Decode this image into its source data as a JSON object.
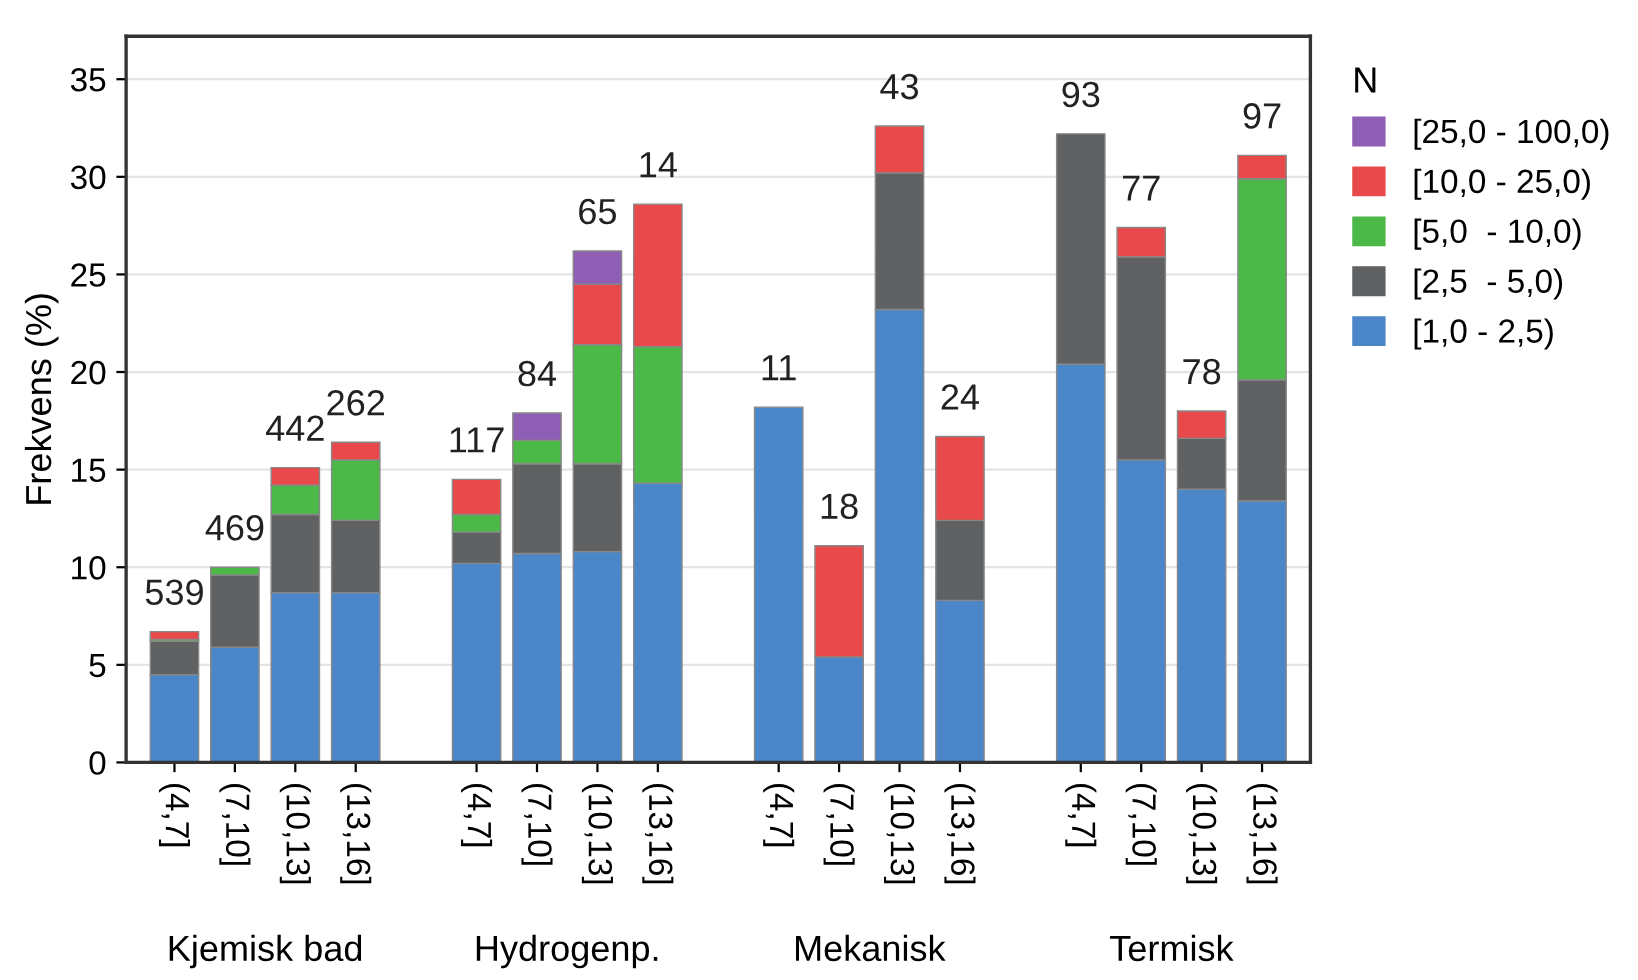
{
  "chart_data": {
    "type": "bar",
    "stacked": true,
    "ylabel": "Frekvens (%)",
    "legend_title": "N",
    "legend": "right",
    "grid": "y",
    "categories": [
      "(4,7]",
      "(7,10]",
      "(10,13]",
      "(13,16]",
      null,
      "(4,7]",
      "(7,10]",
      "(10,13]",
      "(13,16]",
      null,
      "(4,7]",
      "(7,10]",
      "(10,13]",
      "(13,16]",
      null,
      "(4,7]",
      "(7,10]",
      "(10,13]",
      "(13,16]"
    ],
    "series": [
      {
        "name": "[1,0 - 2,5)",
        "color": "#4a86c8",
        "values": [
          4.5,
          5.9,
          8.7,
          8.7,
          null,
          10.2,
          10.7,
          10.8,
          14.3,
          null,
          18.2,
          5.4,
          23.2,
          8.3,
          null,
          20.4,
          15.5,
          14.0,
          13.4
        ]
      },
      {
        "name": "[2,5  - 5,0)",
        "color": "#5f6163",
        "values": [
          1.7,
          3.7,
          4.0,
          3.7,
          null,
          1.6,
          4.6,
          4.5,
          null,
          null,
          null,
          null,
          7.0,
          4.1,
          null,
          11.8,
          10.4,
          2.6,
          6.2
        ]
      },
      {
        "name": "[5,0  - 10,0)",
        "color": "#4cb848",
        "values": [
          0.1,
          0.4,
          1.5,
          3.1,
          null,
          0.9,
          1.2,
          6.1,
          7.0,
          null,
          null,
          null,
          null,
          null,
          null,
          null,
          null,
          null,
          10.3
        ]
      },
      {
        "name": "[10,0 - 25,0)",
        "color": "#e8494a",
        "values": [
          0.4,
          null,
          0.9,
          0.9,
          null,
          1.8,
          null,
          3.1,
          7.3,
          null,
          null,
          5.7,
          2.4,
          4.3,
          null,
          null,
          1.5,
          1.4,
          1.2
        ]
      },
      {
        "name": "[25,0 - 100,0)",
        "color": "#8e5fb5",
        "values": [
          null,
          null,
          null,
          null,
          null,
          null,
          1.4,
          1.7,
          null,
          null,
          null,
          null,
          null,
          null,
          null,
          null,
          null,
          null,
          null
        ]
      }
    ],
    "annotations": [
      "Kjemisk bad",
      "Hydrogenp.",
      "Mekanisk",
      "Termisk",
      {
        "text": "539",
        "y": 6.7
      },
      {
        "text": "469",
        "y": 10.0
      },
      {
        "text": "442",
        "y": 15.1
      },
      {
        "text": "262",
        "y": 16.4
      },
      {
        "text": "117",
        "y": 14.5
      },
      {
        "text": "84",
        "y": 17.9
      },
      {
        "text": "65",
        "y": 26.2
      },
      {
        "text": "14",
        "y": 28.6
      },
      {
        "text": "11",
        "y": 18.2
      },
      {
        "text": "18",
        "y": 11.1
      },
      {
        "text": "43",
        "y": 32.6
      },
      {
        "text": "24",
        "y": 16.7
      },
      {
        "text": "93",
        "y": 32.2
      },
      {
        "text": "77",
        "y": 27.4
      },
      {
        "text": "78",
        "y": 18.0
      },
      {
        "text": "97",
        "y": 31.1
      }
    ],
    "ylim": [
      0,
      37.2
    ],
    "yticks": [
      0,
      5,
      10,
      15,
      20,
      25,
      30,
      35
    ]
  }
}
